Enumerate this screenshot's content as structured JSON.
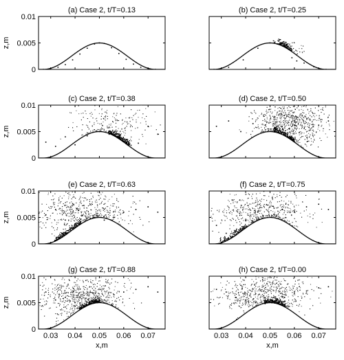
{
  "figure": {
    "axis_labels": {
      "x": "x,m",
      "y": "z,m"
    }
  },
  "chart_data": [
    {
      "type": "scatter",
      "title": "(a) Case 2, t/T=0.13",
      "xlabel": "",
      "ylabel": "z,m",
      "xlim": [
        0.025,
        0.077
      ],
      "ylim": [
        0,
        0.01
      ],
      "yticks": [
        "0",
        "0.005",
        "0.01"
      ],
      "xticks": [],
      "series": [
        {
          "x": [
            0.027,
            0.03,
            0.033,
            0.036,
            0.039,
            0.042,
            0.045,
            0.048,
            0.05,
            0.052,
            0.055,
            0.058,
            0.061,
            0.064,
            0.067,
            0.07,
            0.073
          ],
          "y": [
            0.0,
            0.0001,
            0.0004,
            0.0009,
            0.0018,
            0.0029,
            0.004,
            0.0048,
            0.005,
            0.0049,
            0.0041,
            0.003,
            0.0019,
            0.001,
            0.0004,
            0.0001,
            0.0
          ]
        }
      ]
    },
    {
      "type": "scatter",
      "title": "(b) Case 2, t/T=0.25",
      "xlabel": "",
      "ylabel": "",
      "xlim": [
        0.025,
        0.077
      ],
      "ylim": [
        0,
        0.01
      ],
      "yticks": [],
      "xticks": [],
      "series": [
        {
          "x": [
            0.027,
            0.033,
            0.039,
            0.045,
            0.05,
            0.053,
            0.055,
            0.057,
            0.059,
            0.061,
            0.064,
            0.068,
            0.073
          ],
          "y": [
            0.0,
            0.0004,
            0.0018,
            0.004,
            0.005,
            0.0048,
            0.0049,
            0.0047,
            0.0022,
            0.0016,
            0.0012,
            0.0005,
            0.0
          ]
        }
      ]
    },
    {
      "type": "scatter",
      "title": "(c) Case 2, t/T=0.38",
      "xlabel": "",
      "ylabel": "z,m",
      "xlim": [
        0.025,
        0.077
      ],
      "ylim": [
        0,
        0.01
      ],
      "yticks": [
        "0",
        "0.005",
        "0.01"
      ],
      "xticks": [],
      "series": [
        {
          "x": [
            0.028,
            0.032,
            0.036,
            0.04,
            0.045,
            0.05,
            0.054,
            0.057,
            0.06,
            0.063,
            0.066,
            0.07,
            0.074
          ],
          "y": [
            0.003,
            0.0022,
            0.004,
            0.0025,
            0.0042,
            0.005,
            0.0045,
            0.004,
            0.0032,
            0.0024,
            0.0028,
            0.006,
            0.0045
          ]
        }
      ]
    },
    {
      "type": "scatter",
      "title": "(d) Case 2, t/T=0.50",
      "xlabel": "",
      "ylabel": "",
      "xlim": [
        0.025,
        0.077
      ],
      "ylim": [
        0,
        0.01
      ],
      "yticks": [],
      "xticks": [],
      "series": [
        {
          "x": [
            0.028,
            0.033,
            0.038,
            0.043,
            0.048,
            0.052,
            0.055,
            0.058,
            0.062,
            0.066,
            0.07,
            0.074
          ],
          "y": [
            0.006,
            0.007,
            0.005,
            0.0065,
            0.0062,
            0.0058,
            0.006,
            0.0055,
            0.0048,
            0.0058,
            0.0062,
            0.007
          ]
        }
      ]
    },
    {
      "type": "scatter",
      "title": "(e) Case 2, t/T=0.63",
      "xlabel": "",
      "ylabel": "z,m",
      "xlim": [
        0.025,
        0.077
      ],
      "ylim": [
        0,
        0.01
      ],
      "yticks": [
        "0",
        "0.005",
        "0.01"
      ],
      "xticks": [],
      "series": [
        {
          "x": [
            0.028,
            0.032,
            0.036,
            0.04,
            0.044,
            0.048,
            0.052,
            0.056,
            0.06,
            0.065,
            0.07,
            0.074
          ],
          "y": [
            0.0055,
            0.0065,
            0.0045,
            0.0038,
            0.0042,
            0.005,
            0.0045,
            0.005,
            0.006,
            0.0065,
            0.007,
            0.006
          ]
        }
      ]
    },
    {
      "type": "scatter",
      "title": "(f) Case 2, t/T=0.75",
      "xlabel": "",
      "ylabel": "",
      "xlim": [
        0.025,
        0.077
      ],
      "ylim": [
        0,
        0.01
      ],
      "yticks": [],
      "xticks": [],
      "series": [
        {
          "x": [
            0.028,
            0.032,
            0.036,
            0.04,
            0.045,
            0.05,
            0.055,
            0.06,
            0.065,
            0.07,
            0.074
          ],
          "y": [
            0.0035,
            0.002,
            0.0025,
            0.0045,
            0.006,
            0.007,
            0.0065,
            0.006,
            0.007,
            0.0075,
            0.0065
          ]
        }
      ]
    },
    {
      "type": "scatter",
      "title": "(g) Case 2, t/T=0.88",
      "xlabel": "x,m",
      "ylabel": "z,m",
      "xlim": [
        0.025,
        0.077
      ],
      "ylim": [
        0,
        0.01
      ],
      "yticks": [
        "0",
        "0.005",
        "0.01"
      ],
      "xticks": [
        "0.03",
        "0.04",
        "0.05",
        "0.06",
        "0.07"
      ],
      "series": [
        {
          "x": [
            0.028,
            0.032,
            0.036,
            0.04,
            0.044,
            0.048,
            0.052,
            0.056,
            0.06,
            0.065,
            0.07,
            0.074
          ],
          "y": [
            0.007,
            0.0055,
            0.006,
            0.005,
            0.0042,
            0.005,
            0.0055,
            0.0065,
            0.007,
            0.0075,
            0.008,
            0.007
          ]
        }
      ]
    },
    {
      "type": "scatter",
      "title": "(h) Case 2, t/T=0.00",
      "xlabel": "x,m",
      "ylabel": "",
      "xlim": [
        0.025,
        0.077
      ],
      "ylim": [
        0,
        0.01
      ],
      "yticks": [],
      "xticks": [
        "0.03",
        "0.04",
        "0.05",
        "0.06",
        "0.07"
      ],
      "series": [
        {
          "x": [
            0.028,
            0.032,
            0.036,
            0.04,
            0.044,
            0.048,
            0.052,
            0.056,
            0.06,
            0.065,
            0.07,
            0.074
          ],
          "y": [
            0.0075,
            0.007,
            0.006,
            0.0055,
            0.005,
            0.0048,
            0.0052,
            0.006,
            0.0068,
            0.0072,
            0.0078,
            0.008
          ]
        }
      ]
    }
  ]
}
